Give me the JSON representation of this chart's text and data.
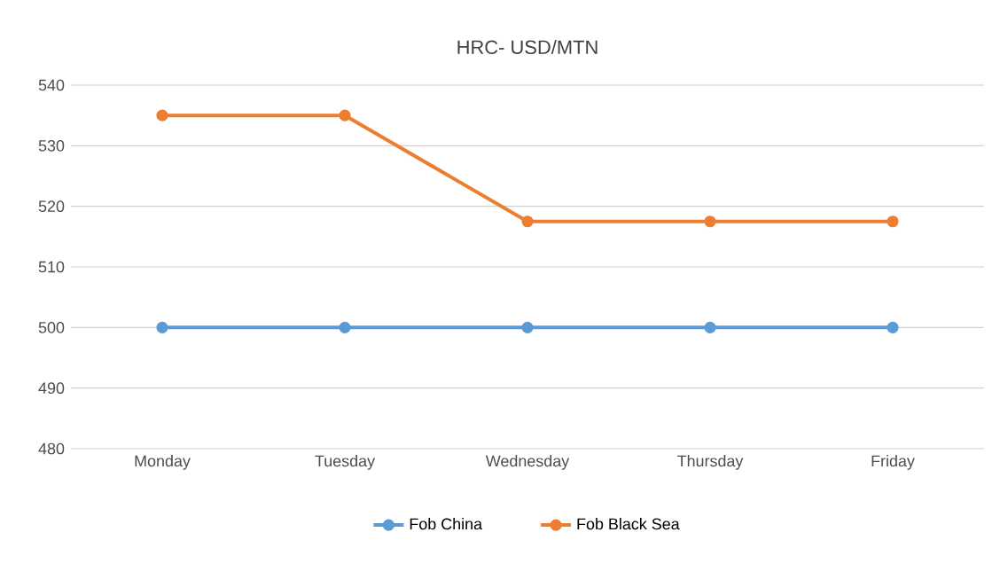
{
  "chart_data": {
    "type": "line",
    "title": "HRC- USD/MTN",
    "categories": [
      "Monday",
      "Tuesday",
      "Wednesday",
      "Thursday",
      "Friday"
    ],
    "series": [
      {
        "name": "Fob China",
        "color": "#5b9bd5",
        "values": [
          500,
          500,
          500,
          500,
          500
        ]
      },
      {
        "name": "Fob Black Sea",
        "color": "#ed7d31",
        "values": [
          535,
          535,
          517.5,
          517.5,
          517.5
        ]
      }
    ],
    "ylim": [
      480,
      540
    ],
    "yticks": [
      480,
      490,
      500,
      510,
      520,
      530,
      540
    ],
    "grid": "y",
    "legend": "bottom",
    "marker": "circle",
    "line_style": "solid"
  }
}
